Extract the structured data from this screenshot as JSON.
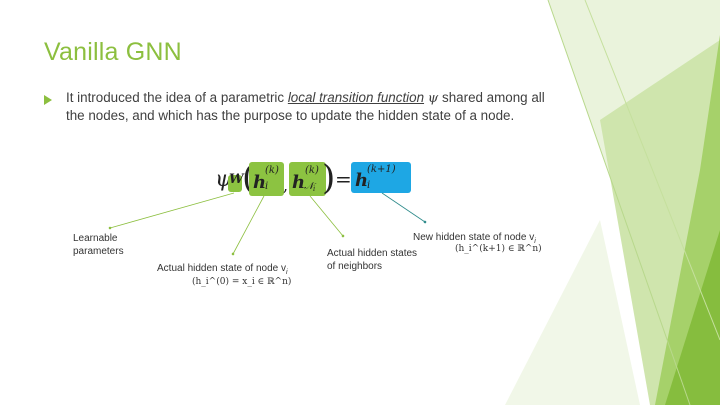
{
  "slide": {
    "title": "Vanilla GNN",
    "bullet": {
      "pre": "It introduced the idea of a parametric ",
      "underlined": "local transition function",
      "psi": "ψ",
      "post": " shared among all the nodes, and which has the purpose to update the hidden state of a node."
    },
    "equation": {
      "psi": "ψ",
      "w": "W",
      "h": "h",
      "sup_k": "(k)",
      "sub_i": "i",
      "sub_N": "𝒩",
      "sub_N_i": "i",
      "equals": "=",
      "sup_k1": "(k+1)"
    },
    "annotations": {
      "learnable": "Learnable parameters",
      "actual_hidden": "Actual hidden state of node v",
      "actual_hidden_formula": "(h_i^(0) = x_i ∈ ℝ^n)",
      "neighbors": "Actual hidden states of neighbors",
      "new_hidden": "New hidden state of node v",
      "new_hidden_formula": "(h_i^(k+1) ∈ ℝ^n)",
      "node_sub": "i"
    }
  },
  "colors": {
    "accent_green": "#8cbf3f",
    "box_green": "#8cc341",
    "box_blue": "#1ea7e4",
    "text": "#404040"
  }
}
